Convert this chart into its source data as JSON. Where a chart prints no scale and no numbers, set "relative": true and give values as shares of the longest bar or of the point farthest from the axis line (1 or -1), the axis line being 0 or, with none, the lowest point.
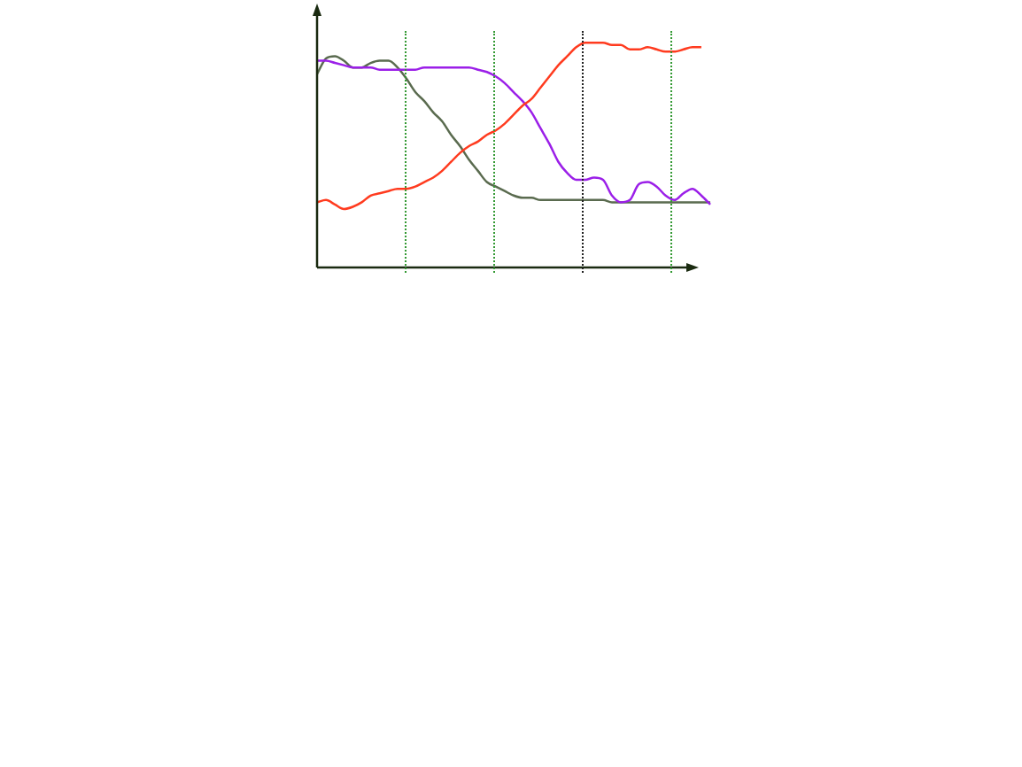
{
  "chart_data": {
    "type": "line",
    "relative": true,
    "tick_labels": false,
    "marker": "none",
    "categories": [
      null,
      null,
      null,
      null,
      null,
      null,
      null,
      null,
      null,
      null,
      null,
      null,
      null,
      null,
      null,
      null,
      null,
      null,
      null,
      null,
      null,
      null,
      null,
      null,
      null,
      null,
      null,
      null,
      null,
      null,
      null,
      null,
      null,
      null,
      null,
      null,
      null,
      null,
      null,
      null,
      null,
      null,
      null,
      null,
      null
    ],
    "series": [
      {
        "color": "#ff3b1f",
        "values": [
          0.29,
          0.3,
          0.28,
          0.26,
          0.27,
          0.29,
          0.32,
          0.33,
          0.34,
          0.35,
          0.35,
          0.36,
          0.38,
          0.4,
          0.43,
          0.47,
          0.51,
          0.54,
          0.56,
          0.59,
          0.61,
          0.64,
          0.68,
          0.72,
          0.75,
          0.8,
          0.85,
          0.9,
          0.94,
          0.98,
          1.0,
          1.0,
          1.0,
          0.99,
          0.99,
          0.97,
          0.97,
          0.98,
          0.97,
          0.96,
          0.96,
          0.97,
          0.98,
          0.98,
          null
        ]
      },
      {
        "color": "#9b1fe8",
        "values": [
          0.92,
          0.92,
          0.91,
          0.9,
          0.89,
          0.89,
          0.89,
          0.88,
          0.88,
          0.88,
          0.88,
          0.88,
          0.89,
          0.89,
          0.89,
          0.89,
          0.89,
          0.89,
          0.88,
          0.87,
          0.85,
          0.82,
          0.78,
          0.74,
          0.69,
          0.62,
          0.55,
          0.47,
          0.42,
          0.39,
          0.39,
          0.4,
          0.39,
          0.32,
          0.29,
          0.3,
          0.37,
          0.38,
          0.36,
          0.32,
          0.3,
          0.33,
          0.35,
          0.32,
          0.28
        ]
      },
      {
        "color": "#5a6b4f",
        "values": [
          0.86,
          0.93,
          0.94,
          0.92,
          0.89,
          0.89,
          0.91,
          0.92,
          0.92,
          0.89,
          0.84,
          0.78,
          0.74,
          0.69,
          0.65,
          0.59,
          0.54,
          0.48,
          0.43,
          0.38,
          0.36,
          0.34,
          0.32,
          0.31,
          0.31,
          0.3,
          0.3,
          0.3,
          0.3,
          0.3,
          0.3,
          0.3,
          0.3,
          0.29,
          0.29,
          0.29,
          0.29,
          0.29,
          0.29,
          0.29,
          0.29,
          0.29,
          0.29,
          0.29,
          0.29
        ]
      }
    ]
  }
}
